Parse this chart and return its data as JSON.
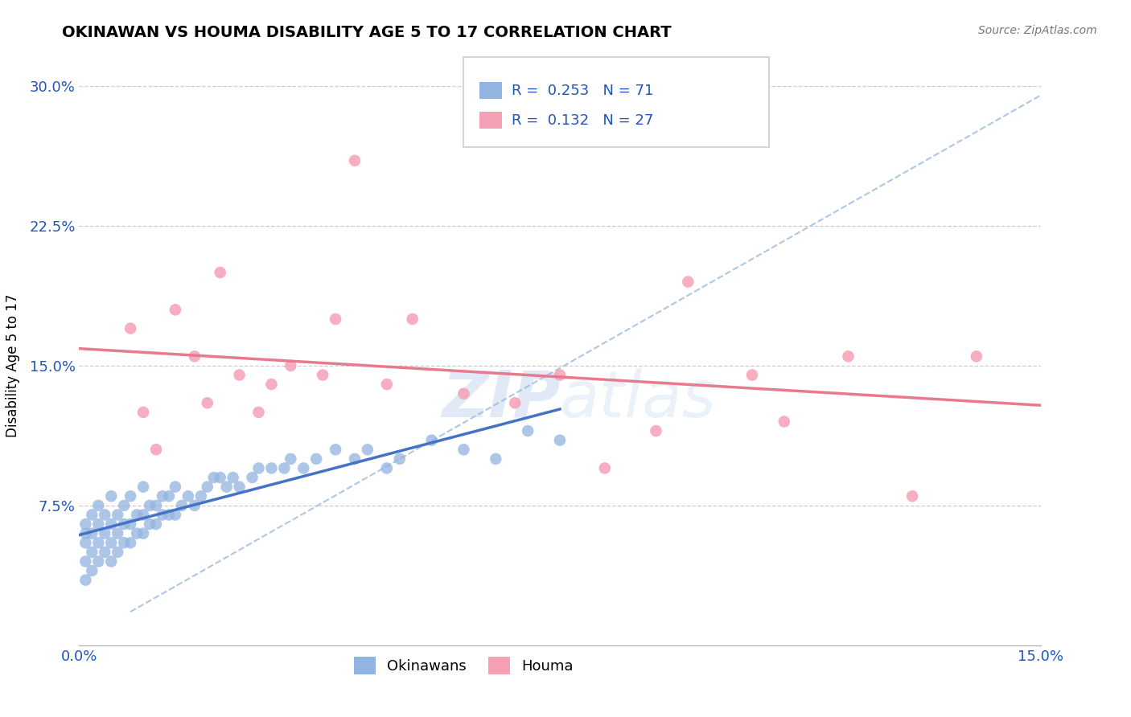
{
  "title": "OKINAWAN VS HOUMA DISABILITY AGE 5 TO 17 CORRELATION CHART",
  "source": "Source: ZipAtlas.com",
  "ylabel": "Disability Age 5 to 17",
  "xlim": [
    0.0,
    0.15
  ],
  "ylim": [
    0.0,
    0.3
  ],
  "ytick_vals": [
    0.075,
    0.15,
    0.225,
    0.3
  ],
  "yticklabels": [
    "7.5%",
    "15.0%",
    "22.5%",
    "30.0%"
  ],
  "okinawan_R": 0.253,
  "okinawan_N": 71,
  "houma_R": 0.132,
  "houma_N": 27,
  "okinawan_color": "#92b4e1",
  "houma_color": "#f5a0b5",
  "okinawan_line_color": "#4472c4",
  "houma_line_color": "#e87a8f",
  "dashed_line_color": "#9ab8dc",
  "ok_x": [
    0.001,
    0.001,
    0.001,
    0.001,
    0.001,
    0.002,
    0.002,
    0.002,
    0.002,
    0.003,
    0.003,
    0.003,
    0.003,
    0.004,
    0.004,
    0.004,
    0.005,
    0.005,
    0.005,
    0.005,
    0.006,
    0.006,
    0.006,
    0.007,
    0.007,
    0.007,
    0.008,
    0.008,
    0.008,
    0.009,
    0.009,
    0.01,
    0.01,
    0.01,
    0.011,
    0.011,
    0.012,
    0.012,
    0.013,
    0.013,
    0.014,
    0.014,
    0.015,
    0.015,
    0.016,
    0.017,
    0.018,
    0.019,
    0.02,
    0.021,
    0.022,
    0.023,
    0.024,
    0.025,
    0.027,
    0.028,
    0.03,
    0.032,
    0.033,
    0.035,
    0.037,
    0.04,
    0.043,
    0.045,
    0.048,
    0.05,
    0.055,
    0.06,
    0.065,
    0.07,
    0.075
  ],
  "ok_y": [
    0.035,
    0.045,
    0.055,
    0.06,
    0.065,
    0.04,
    0.05,
    0.06,
    0.07,
    0.045,
    0.055,
    0.065,
    0.075,
    0.05,
    0.06,
    0.07,
    0.045,
    0.055,
    0.065,
    0.08,
    0.05,
    0.06,
    0.07,
    0.055,
    0.065,
    0.075,
    0.055,
    0.065,
    0.08,
    0.06,
    0.07,
    0.06,
    0.07,
    0.085,
    0.065,
    0.075,
    0.065,
    0.075,
    0.07,
    0.08,
    0.07,
    0.08,
    0.07,
    0.085,
    0.075,
    0.08,
    0.075,
    0.08,
    0.085,
    0.09,
    0.09,
    0.085,
    0.09,
    0.085,
    0.09,
    0.095,
    0.095,
    0.095,
    0.1,
    0.095,
    0.1,
    0.105,
    0.1,
    0.105,
    0.095,
    0.1,
    0.11,
    0.105,
    0.1,
    0.115,
    0.11
  ],
  "h_x": [
    0.008,
    0.01,
    0.012,
    0.015,
    0.018,
    0.02,
    0.022,
    0.025,
    0.028,
    0.03,
    0.033,
    0.038,
    0.04,
    0.043,
    0.048,
    0.052,
    0.06,
    0.068,
    0.075,
    0.082,
    0.09,
    0.095,
    0.105,
    0.11,
    0.12,
    0.13,
    0.14
  ],
  "h_y": [
    0.17,
    0.125,
    0.105,
    0.18,
    0.155,
    0.13,
    0.2,
    0.145,
    0.125,
    0.14,
    0.15,
    0.145,
    0.175,
    0.26,
    0.14,
    0.175,
    0.135,
    0.13,
    0.145,
    0.095,
    0.115,
    0.195,
    0.145,
    0.12,
    0.155,
    0.08,
    0.155
  ]
}
